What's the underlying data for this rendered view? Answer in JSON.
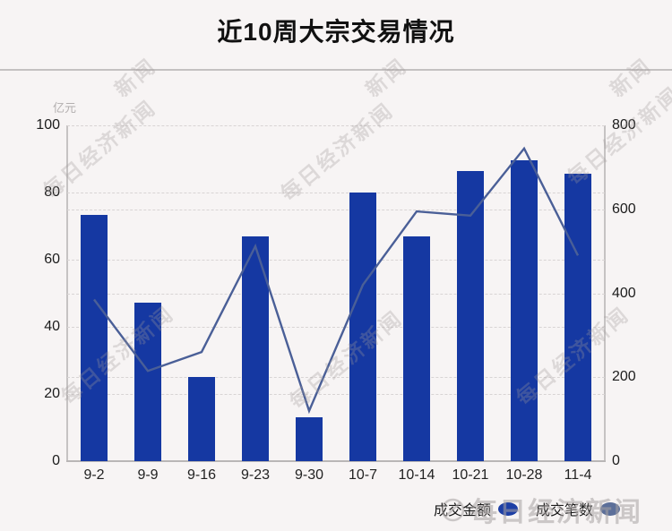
{
  "title": "近10周大宗交易情况",
  "watermark": {
    "text": "每日经济新闻",
    "fragment": "新闻"
  },
  "legend": [
    {
      "label": "成交金额",
      "color": "#1d3fa5"
    },
    {
      "label": "成交笔数",
      "color": "#5c6f99"
    }
  ],
  "chart_data": {
    "type": "bar",
    "title": "近10周大宗交易情况",
    "categories": [
      "9-2",
      "9-9",
      "9-16",
      "9-23",
      "9-30",
      "10-7",
      "10-14",
      "10-21",
      "10-28",
      "11-4"
    ],
    "series": [
      {
        "name": "成交金额",
        "type": "bar",
        "axis": "left",
        "unit": "亿元",
        "color": "#1538a2",
        "values": [
          73.4,
          47.1,
          25.1,
          67.0,
          13.1,
          80.0,
          67.0,
          86.3,
          89.5,
          85.6
        ]
      },
      {
        "name": "成交笔数",
        "type": "line",
        "axis": "right",
        "color": "#4a5f97",
        "values": [
          385,
          215,
          260,
          512,
          120,
          420,
          595,
          585,
          745,
          490
        ]
      }
    ],
    "left_axis": {
      "unit": "亿元",
      "ticks": [
        0,
        20,
        40,
        60,
        80,
        100
      ],
      "range": [
        0,
        100
      ]
    },
    "right_axis": {
      "ticks": [
        0,
        200,
        400,
        600,
        800
      ],
      "range": [
        0,
        800
      ]
    },
    "grid": "dashed",
    "legend_position": "bottom-right"
  }
}
